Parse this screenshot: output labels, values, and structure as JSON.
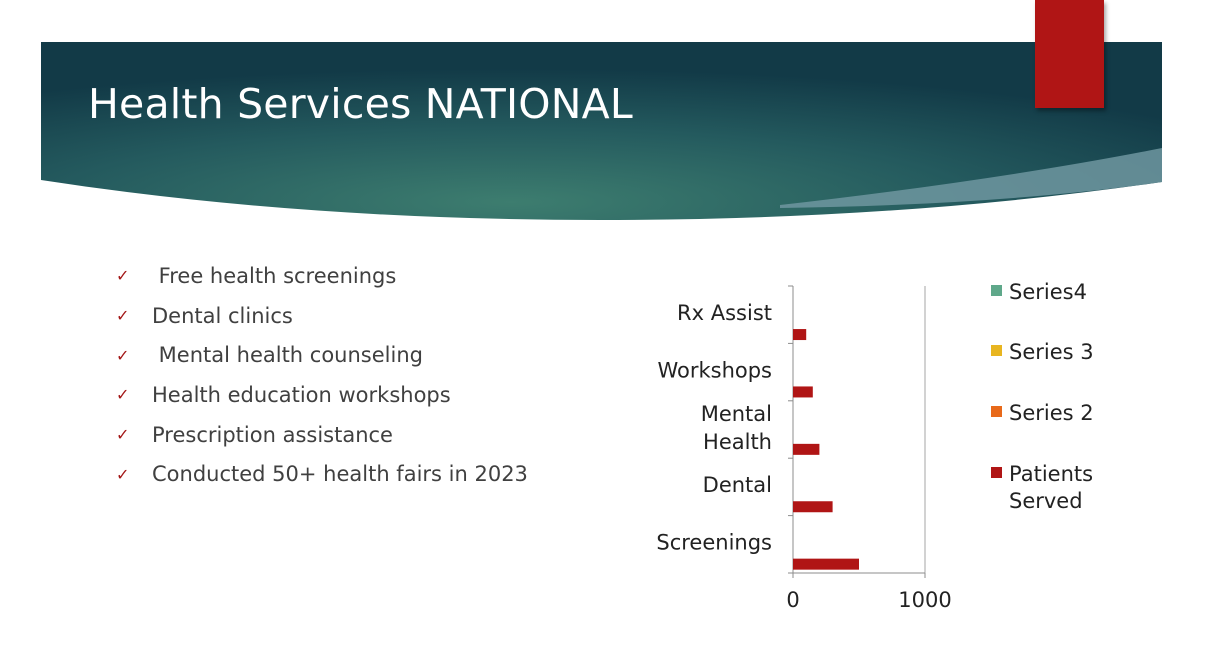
{
  "slide": {
    "title": "Health Services NATIONAL",
    "bullets": [
      " Free health screenings",
      "Dental clinics",
      " Mental health counseling",
      "Health education workshops",
      "Prescription assistance",
      "Conducted 50+ health fairs in 2023"
    ],
    "colors": {
      "banner_dark": "#123a47",
      "banner_mid": "#3a7a6c",
      "accent": "#b01515",
      "check": "#a31717"
    }
  },
  "chart_data": {
    "type": "bar",
    "orientation": "horizontal",
    "categories": [
      "Screenings",
      "Dental",
      "Mental Health",
      "Workshops",
      "Rx Assist"
    ],
    "category_lines": [
      [
        "Screenings"
      ],
      [
        "Dental"
      ],
      [
        "Mental",
        "Health"
      ],
      [
        "Workshops"
      ],
      [
        "Rx Assist"
      ]
    ],
    "series": [
      {
        "name": "Patients Served",
        "name_lines": [
          "Patients",
          "Served"
        ],
        "color": "#b01515",
        "values": [
          500,
          300,
          200,
          150,
          100
        ]
      },
      {
        "name": "Series 2",
        "name_lines": [
          "Series 2"
        ],
        "color": "#e8691a",
        "values": [
          0,
          0,
          0,
          0,
          0
        ]
      },
      {
        "name": "Series 3",
        "name_lines": [
          "Series 3"
        ],
        "color": "#e8b520",
        "values": [
          0,
          0,
          0,
          0,
          0
        ]
      },
      {
        "name": "Series4",
        "name_lines": [
          "Series4"
        ],
        "color": "#5fa88a",
        "values": [
          0,
          0,
          0,
          0,
          0
        ]
      }
    ],
    "xlim": [
      0,
      1000
    ],
    "xticks": [
      "0",
      "1000"
    ],
    "title": "",
    "xlabel": "",
    "ylabel": "",
    "legend": "right",
    "grid": true
  }
}
